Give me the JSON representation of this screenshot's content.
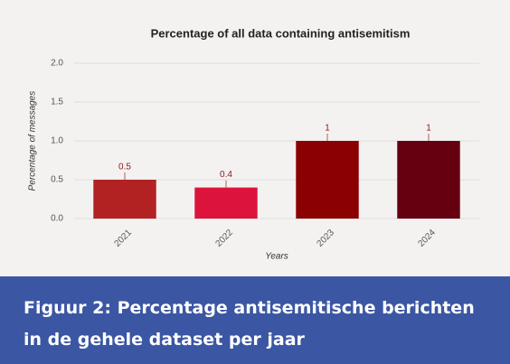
{
  "chart_data": {
    "type": "bar",
    "title": "Percentage of all data containing antisemitism",
    "categories": [
      "2021",
      "2022",
      "2023",
      "2024"
    ],
    "values": [
      0.5,
      0.4,
      1,
      1
    ],
    "colors": [
      "#b22222",
      "#dc143c",
      "#8b0000",
      "#650010"
    ],
    "xlabel": "Years",
    "ylabel": "Percentage of messages",
    "ylim": [
      0,
      2
    ],
    "yticks": [
      {
        "value": 0,
        "label": "0.0"
      },
      0.5,
      {
        "value": 1,
        "label": "1.0"
      },
      1.5,
      {
        "value": 2,
        "label": "2.0"
      }
    ],
    "grid": true
  },
  "caption": [
    "Figuur 2: Percentage antisemitische berichten",
    "in de gehele dataset per jaar"
  ]
}
